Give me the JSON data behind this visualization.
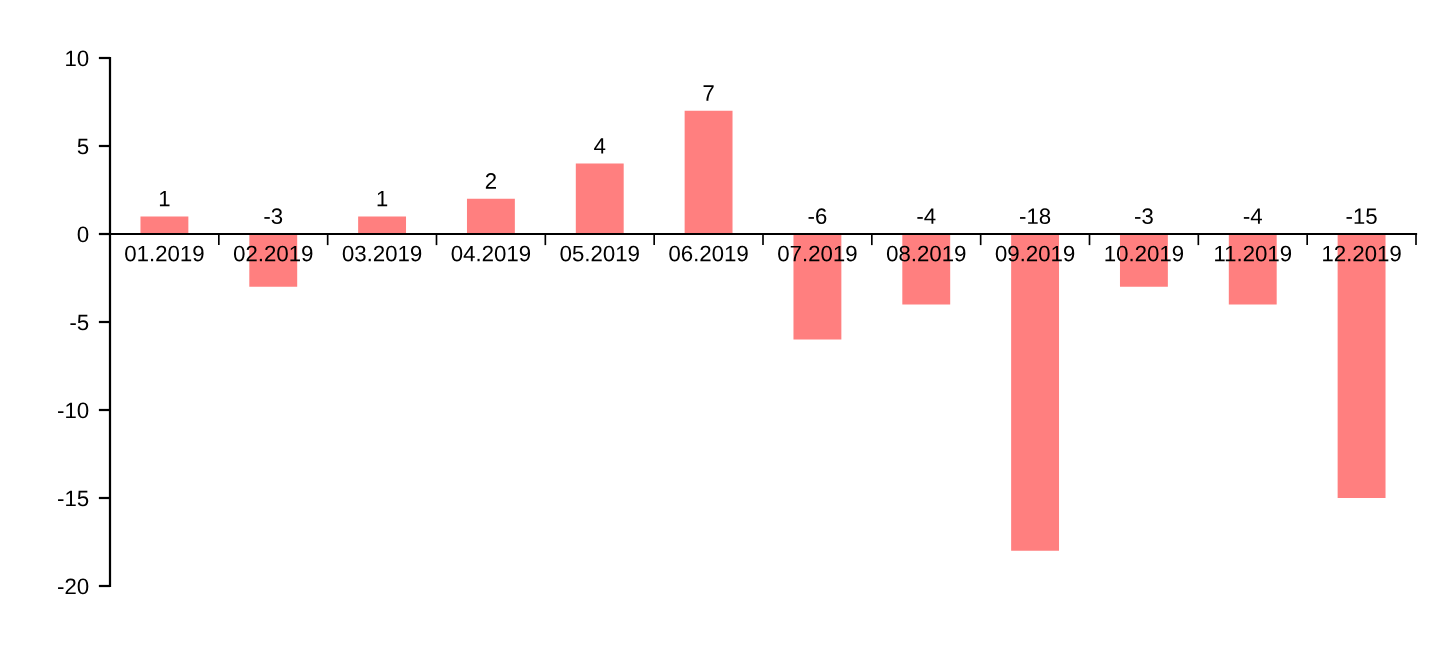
{
  "chart_data": {
    "type": "bar",
    "categories": [
      "01.2019",
      "02.2019",
      "03.2019",
      "04.2019",
      "05.2019",
      "06.2019",
      "07.2019",
      "08.2019",
      "09.2019",
      "10.2019",
      "11.2019",
      "12.2019"
    ],
    "values": [
      1,
      -3,
      1,
      2,
      4,
      7,
      -6,
      -4,
      -18,
      -3,
      -4,
      -15
    ],
    "color": "#ff7f7f",
    "ylim": [
      -20,
      10
    ],
    "yticks": [
      -20,
      -15,
      -10,
      -5,
      0,
      5,
      10
    ],
    "data_labels": true,
    "grid": false,
    "legend": false
  }
}
